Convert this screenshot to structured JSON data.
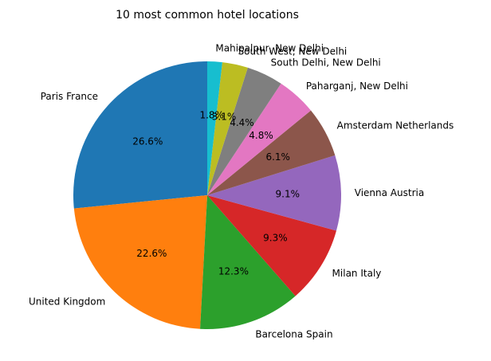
{
  "chart_data": {
    "type": "pie",
    "title": "10 most common hotel locations",
    "start_angle_deg": 90,
    "direction": "counterclockwise",
    "slices": [
      {
        "label": "Paris France",
        "value": 26.6,
        "pct_label": "26.6%",
        "color": "#1f77b4"
      },
      {
        "label": "United Kingdom",
        "value": 22.6,
        "pct_label": "22.6%",
        "color": "#ff7f0e"
      },
      {
        "label": "Barcelona Spain",
        "value": 12.3,
        "pct_label": "12.3%",
        "color": "#2ca02c"
      },
      {
        "label": "Milan Italy",
        "value": 9.3,
        "pct_label": "9.3%",
        "color": "#d62728"
      },
      {
        "label": "Vienna Austria",
        "value": 9.1,
        "pct_label": "9.1%",
        "color": "#9467bd"
      },
      {
        "label": "Amsterdam Netherlands",
        "value": 6.1,
        "pct_label": "6.1%",
        "color": "#8c564b"
      },
      {
        "label": "Paharganj, New Delhi",
        "value": 4.8,
        "pct_label": "4.8%",
        "color": "#e377c2"
      },
      {
        "label": "South Delhi, New Delhi",
        "value": 4.4,
        "pct_label": "4.4%",
        "color": "#7f7f7f"
      },
      {
        "label": "South West, New Delhi",
        "value": 3.1,
        "pct_label": "3.1%",
        "color": "#bcbd22"
      },
      {
        "label": "Mahipalpur, New Delhi",
        "value": 1.8,
        "pct_label": "1.8%",
        "color": "#17becf"
      }
    ]
  }
}
